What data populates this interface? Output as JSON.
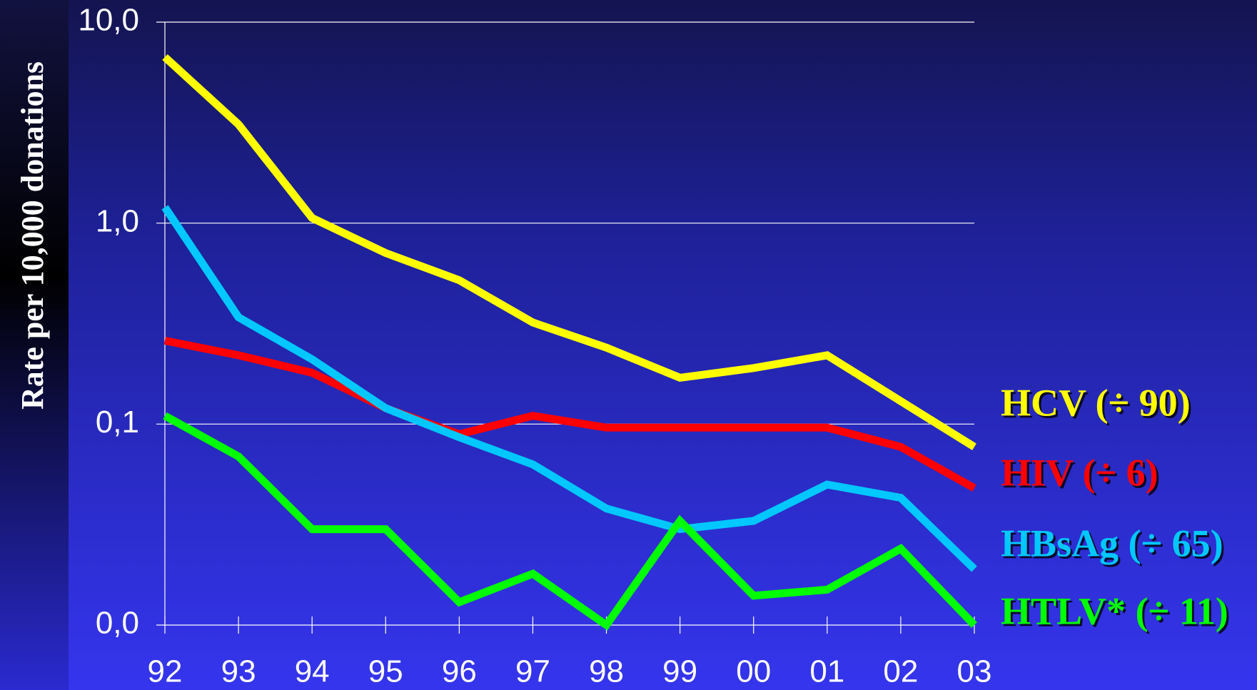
{
  "chart_data": {
    "type": "line",
    "y_label": "Rate per 10,000 donations",
    "categories": [
      "92",
      "93",
      "94",
      "95",
      "96",
      "97",
      "98",
      "99",
      "00",
      "01",
      "02",
      "03"
    ],
    "series": [
      {
        "name": "HCV (÷ 90)",
        "color": "#ffff00",
        "values": [
          6.7,
          3.1,
          1.06,
          0.71,
          0.52,
          0.32,
          0.24,
          0.17,
          0.19,
          0.22,
          0.13,
          0.077
        ]
      },
      {
        "name": "HIV (÷ 6)",
        "color": "#ff0000",
        "values": [
          0.26,
          0.22,
          0.18,
          0.12,
          0.089,
          0.11,
          0.096,
          0.096,
          0.096,
          0.096,
          0.077,
          0.048
        ]
      },
      {
        "name": "HBsAg (÷ 65)",
        "color": "#00c8ff",
        "values": [
          1.2,
          0.34,
          0.21,
          0.12,
          0.086,
          0.063,
          0.038,
          0.03,
          0.033,
          0.05,
          0.043,
          0.019
        ]
      },
      {
        "name": "HTLV* (÷ 11)",
        "color": "#00ff00",
        "values": [
          0.11,
          0.069,
          0.03,
          0.03,
          0.013,
          0.018,
          0.01,
          0.033,
          0.014,
          0.015,
          0.024,
          0.01
        ]
      }
    ],
    "ylim": [
      0.01,
      10
    ],
    "yticks": [
      {
        "value": 0.01,
        "label": "0,0"
      },
      {
        "value": 0.1,
        "label": "0,1"
      },
      {
        "value": 1,
        "label": "1,0"
      },
      {
        "value": 10,
        "label": "10,0"
      }
    ],
    "log_scale": true,
    "grid": true
  }
}
